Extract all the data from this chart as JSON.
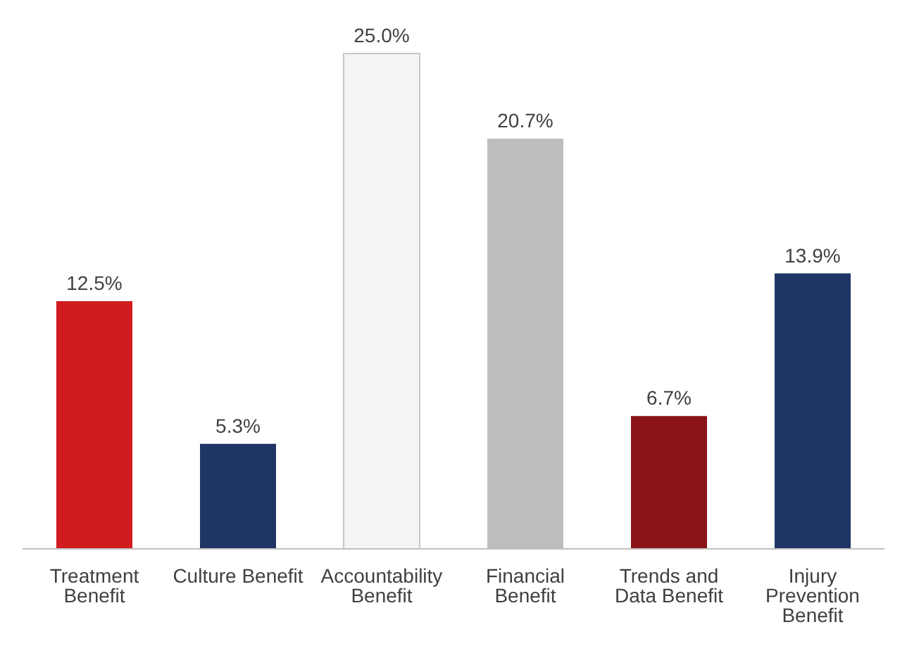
{
  "chart_data": {
    "type": "bar",
    "categories": [
      "Treatment Benefit",
      "Culture Benefit",
      "Accountability Benefit",
      "Financial Benefit",
      "Trends and Data Benefit",
      "Injury Prevention Benefit"
    ],
    "values": [
      12.5,
      5.3,
      25.0,
      20.7,
      6.7,
      13.9
    ],
    "value_labels": [
      "12.5%",
      "5.3%",
      "25.0%",
      "20.7%",
      "6.7%",
      "13.9%"
    ],
    "colors": [
      "#d01c1f",
      "#1f3566",
      "#f4f4f4",
      "#bdbdbd",
      "#8a1416",
      "#1f3566"
    ],
    "grid": false,
    "legend": false,
    "tick_labels": "x"
  }
}
